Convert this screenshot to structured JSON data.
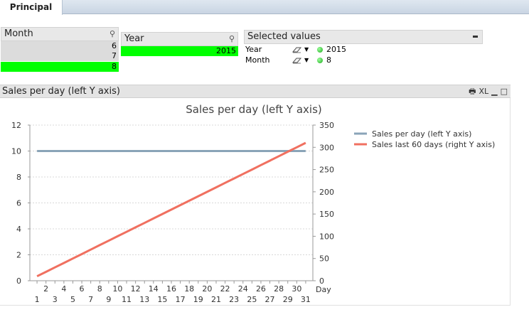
{
  "tabs": [
    {
      "label": "Principal"
    }
  ],
  "month_listbox": {
    "title": "Month",
    "items": [
      {
        "label": "6",
        "state": "excluded"
      },
      {
        "label": "7",
        "state": "excluded"
      },
      {
        "label": "8",
        "state": "selected"
      }
    ]
  },
  "year_listbox": {
    "title": "Year",
    "items": [
      {
        "label": "2015",
        "state": "selected"
      }
    ]
  },
  "selected_values": {
    "title": "Selected values",
    "rows": [
      {
        "field": "Year",
        "value": "2015"
      },
      {
        "field": "Month",
        "value": "8"
      }
    ]
  },
  "chart_panel": {
    "caption": "Sales per day (left Y axis)",
    "controls": [
      "XL"
    ]
  },
  "colors": {
    "selected": "#00ff00",
    "excluded": "#dcdcdc",
    "series_left": "#8aa4b8",
    "series_right": "#f07060"
  },
  "icons": [
    "search-icon",
    "eraser-icon",
    "dropdown-arrow-icon",
    "status-dot-icon",
    "minimize-icon",
    "print-icon",
    "excel-icon",
    "maximize-icon"
  ],
  "chart_data": {
    "type": "line",
    "title": "Sales per day (left Y axis)",
    "xlabel": "Day",
    "x": [
      1,
      2,
      3,
      4,
      5,
      6,
      7,
      8,
      9,
      10,
      11,
      12,
      13,
      14,
      15,
      16,
      17,
      18,
      19,
      20,
      21,
      22,
      23,
      24,
      25,
      26,
      27,
      28,
      29,
      30,
      31
    ],
    "x_ticks_top": [
      "2",
      "4",
      "6",
      "8",
      "10",
      "12",
      "14",
      "16",
      "18",
      "20",
      "22",
      "24",
      "26",
      "28",
      "30"
    ],
    "x_ticks_bottom": [
      "1",
      "3",
      "5",
      "7",
      "9",
      "11",
      "13",
      "15",
      "17",
      "19",
      "21",
      "23",
      "25",
      "27",
      "29",
      "31"
    ],
    "left_y": {
      "ylim": [
        0,
        12
      ],
      "ticks": [
        "0",
        "2",
        "4",
        "6",
        "8",
        "10",
        "12"
      ]
    },
    "right_y": {
      "ylim": [
        0,
        350
      ],
      "ticks": [
        "0",
        "50",
        "100",
        "150",
        "200",
        "250",
        "300",
        "350"
      ]
    },
    "grid": true,
    "legend_position": "top-right",
    "series": [
      {
        "name": "Sales per day (left Y axis)",
        "axis": "left",
        "values": [
          10,
          10,
          10,
          10,
          10,
          10,
          10,
          10,
          10,
          10,
          10,
          10,
          10,
          10,
          10,
          10,
          10,
          10,
          10,
          10,
          10,
          10,
          10,
          10,
          10,
          10,
          10,
          10,
          10,
          10,
          10
        ]
      },
      {
        "name": "Sales last 60 days (right Y axis)",
        "axis": "right",
        "values": [
          10,
          20,
          30,
          40,
          50,
          60,
          70,
          80,
          90,
          100,
          110,
          120,
          130,
          140,
          150,
          160,
          170,
          180,
          190,
          200,
          210,
          220,
          230,
          240,
          250,
          260,
          270,
          280,
          290,
          300,
          310
        ]
      }
    ]
  }
}
